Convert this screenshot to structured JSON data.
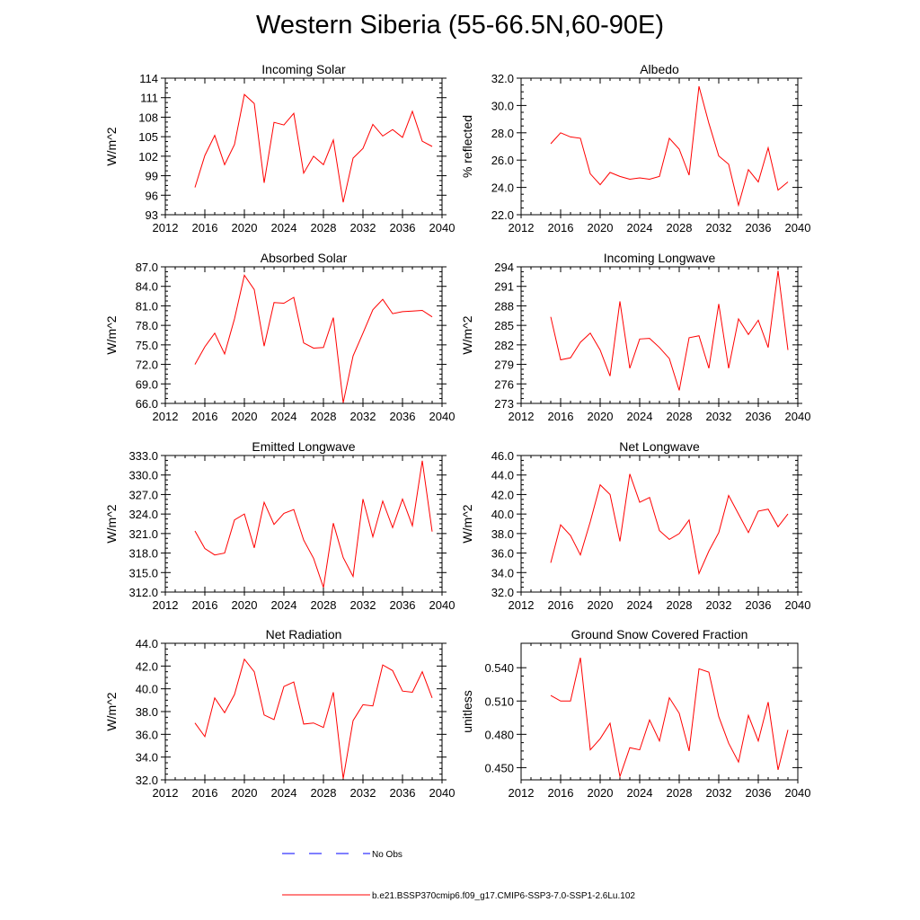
{
  "figure_title": "Western Siberia (55-66.5N,60-90E)",
  "legend": {
    "obs_label": "No Obs",
    "model_label": "b.e21.BSSP370cmip6.f09_g17.CMIP6-SSP3-7.0-SSP1-2.6Lu.102",
    "model_color": "#ff0000",
    "obs_color": "#0000ff"
  },
  "chart_data": [
    {
      "type": "line",
      "title": "Incoming Solar",
      "ylabel": "W/m^2",
      "xlim": [
        2012,
        2040
      ],
      "ylim": [
        93,
        114
      ],
      "x_ticks": [
        "2012",
        "2016",
        "2020",
        "2024",
        "2028",
        "2032",
        "2036",
        "2040"
      ],
      "y_ticks": [
        "93",
        "96",
        "99",
        "102",
        "105",
        "108",
        "111",
        "114"
      ],
      "x": [
        2015,
        2016,
        2017,
        2018,
        2019,
        2020,
        2021,
        2022,
        2023,
        2024,
        2025,
        2026,
        2027,
        2028,
        2029,
        2030,
        2031,
        2032,
        2033,
        2034,
        2035,
        2036,
        2037,
        2038,
        2039
      ],
      "values": [
        97.2,
        102.1,
        105.2,
        100.7,
        103.8,
        111.5,
        110.1,
        97.9,
        107.2,
        106.8,
        108.6,
        99.4,
        102.0,
        100.7,
        104.5,
        94.9,
        101.7,
        103.2,
        106.9,
        105.1,
        106.1,
        104.9,
        108.9,
        104.3,
        103.5
      ]
    },
    {
      "type": "line",
      "title": "Albedo",
      "ylabel": "% reflected",
      "xlim": [
        2012,
        2040
      ],
      "ylim": [
        22,
        32
      ],
      "x_ticks": [
        "2012",
        "2016",
        "2020",
        "2024",
        "2028",
        "2032",
        "2036",
        "2040"
      ],
      "y_ticks": [
        "22.0",
        "24.0",
        "26.0",
        "28.0",
        "30.0",
        "32.0"
      ],
      "x": [
        2015,
        2016,
        2017,
        2018,
        2019,
        2020,
        2021,
        2022,
        2023,
        2024,
        2025,
        2026,
        2027,
        2028,
        2029,
        2030,
        2031,
        2032,
        2033,
        2034,
        2035,
        2036,
        2037,
        2038,
        2039
      ],
      "values": [
        27.2,
        28.0,
        27.7,
        27.6,
        25.0,
        24.2,
        25.1,
        24.8,
        24.6,
        24.7,
        24.6,
        24.8,
        27.6,
        26.8,
        24.9,
        31.4,
        28.7,
        26.3,
        25.7,
        22.7,
        25.3,
        24.4,
        26.9,
        23.8,
        24.4
      ]
    },
    {
      "type": "line",
      "title": "Absorbed Solar",
      "ylabel": "W/m^2",
      "xlim": [
        2012,
        2040
      ],
      "ylim": [
        66,
        87
      ],
      "x_ticks": [
        "2012",
        "2016",
        "2020",
        "2024",
        "2028",
        "2032",
        "2036",
        "2040"
      ],
      "y_ticks": [
        "66.0",
        "69.0",
        "72.0",
        "75.0",
        "78.0",
        "81.0",
        "84.0",
        "87.0"
      ],
      "x": [
        2015,
        2016,
        2017,
        2018,
        2019,
        2020,
        2021,
        2022,
        2023,
        2024,
        2025,
        2026,
        2027,
        2028,
        2029,
        2030,
        2031,
        2032,
        2033,
        2034,
        2035,
        2036,
        2037,
        2038,
        2039
      ],
      "values": [
        72.0,
        74.7,
        76.8,
        73.6,
        79.0,
        85.7,
        83.5,
        74.8,
        81.5,
        81.4,
        82.3,
        75.3,
        74.5,
        74.6,
        79.2,
        66.1,
        73.3,
        76.8,
        80.4,
        82.0,
        79.8,
        80.1,
        80.2,
        80.3,
        79.3
      ]
    },
    {
      "type": "line",
      "title": "Incoming Longwave",
      "ylabel": "W/m^2",
      "xlim": [
        2012,
        2040
      ],
      "ylim": [
        273,
        294
      ],
      "x_ticks": [
        "2012",
        "2016",
        "2020",
        "2024",
        "2028",
        "2032",
        "2036",
        "2040"
      ],
      "y_ticks": [
        "273",
        "276",
        "279",
        "282",
        "285",
        "288",
        "291",
        "294"
      ],
      "x": [
        2015,
        2016,
        2017,
        2018,
        2019,
        2020,
        2021,
        2022,
        2023,
        2024,
        2025,
        2026,
        2027,
        2028,
        2029,
        2030,
        2031,
        2032,
        2033,
        2034,
        2035,
        2036,
        2037,
        2038,
        2039
      ],
      "values": [
        286.3,
        279.7,
        280.0,
        282.4,
        283.8,
        281.2,
        277.2,
        288.7,
        278.4,
        282.9,
        283.0,
        281.6,
        279.9,
        275.0,
        283.1,
        283.4,
        278.4,
        288.3,
        278.4,
        286.0,
        283.6,
        285.8,
        281.6,
        293.4,
        281.2
      ]
    },
    {
      "type": "line",
      "title": "Emitted Longwave",
      "ylabel": "W/m^2",
      "xlim": [
        2012,
        2040
      ],
      "ylim": [
        312,
        333
      ],
      "x_ticks": [
        "2012",
        "2016",
        "2020",
        "2024",
        "2028",
        "2032",
        "2036",
        "2040"
      ],
      "y_ticks": [
        "312.0",
        "315.0",
        "318.0",
        "321.0",
        "324.0",
        "327.0",
        "330.0",
        "333.0"
      ],
      "x": [
        2015,
        2016,
        2017,
        2018,
        2019,
        2020,
        2021,
        2022,
        2023,
        2024,
        2025,
        2026,
        2027,
        2028,
        2029,
        2030,
        2031,
        2032,
        2033,
        2034,
        2035,
        2036,
        2037,
        2038,
        2039
      ],
      "values": [
        321.4,
        318.7,
        317.7,
        318.0,
        323.1,
        324.0,
        318.8,
        325.8,
        322.4,
        324.1,
        324.7,
        320.0,
        317.2,
        312.7,
        322.6,
        317.3,
        314.4,
        326.3,
        320.5,
        326.0,
        321.9,
        326.3,
        322.2,
        332.2,
        321.3
      ]
    },
    {
      "type": "line",
      "title": "Net Longwave",
      "ylabel": "W/m^2",
      "xlim": [
        2012,
        2040
      ],
      "ylim": [
        32,
        46
      ],
      "x_ticks": [
        "2012",
        "2016",
        "2020",
        "2024",
        "2028",
        "2032",
        "2036",
        "2040"
      ],
      "y_ticks": [
        "32.0",
        "34.0",
        "36.0",
        "38.0",
        "40.0",
        "42.0",
        "44.0",
        "46.0"
      ],
      "x": [
        2015,
        2016,
        2017,
        2018,
        2019,
        2020,
        2021,
        2022,
        2023,
        2024,
        2025,
        2026,
        2027,
        2028,
        2029,
        2030,
        2031,
        2032,
        2033,
        2034,
        2035,
        2036,
        2037,
        2038,
        2039
      ],
      "values": [
        35.0,
        38.9,
        37.8,
        35.8,
        39.2,
        43.0,
        42.0,
        37.2,
        44.1,
        41.2,
        41.7,
        38.3,
        37.4,
        38.0,
        39.4,
        33.9,
        36.2,
        38.1,
        41.9,
        40.0,
        38.1,
        40.3,
        40.5,
        38.7,
        40.0
      ]
    },
    {
      "type": "line",
      "title": "Net Radiation",
      "ylabel": "W/m^2",
      "xlim": [
        2012,
        2040
      ],
      "ylim": [
        32,
        44
      ],
      "x_ticks": [
        "2012",
        "2016",
        "2020",
        "2024",
        "2028",
        "2032",
        "2036",
        "2040"
      ],
      "y_ticks": [
        "32.0",
        "34.0",
        "36.0",
        "38.0",
        "40.0",
        "42.0",
        "44.0"
      ],
      "x": [
        2015,
        2016,
        2017,
        2018,
        2019,
        2020,
        2021,
        2022,
        2023,
        2024,
        2025,
        2026,
        2027,
        2028,
        2029,
        2030,
        2031,
        2032,
        2033,
        2034,
        2035,
        2036,
        2037,
        2038,
        2039
      ],
      "values": [
        37.0,
        35.8,
        39.2,
        37.9,
        39.5,
        42.6,
        41.5,
        37.7,
        37.3,
        40.2,
        40.6,
        36.9,
        37.0,
        36.6,
        39.7,
        32.1,
        37.2,
        38.6,
        38.5,
        42.1,
        41.6,
        39.8,
        39.7,
        41.5,
        39.2
      ]
    },
    {
      "type": "line",
      "title": "Ground Snow Covered Fraction",
      "ylabel": "unitless",
      "xlim": [
        2012,
        2040
      ],
      "ylim": [
        0.439,
        0.562
      ],
      "x_ticks": [
        "2012",
        "2016",
        "2020",
        "2024",
        "2028",
        "2032",
        "2036",
        "2040"
      ],
      "y_ticks": [
        "0.450",
        "0.480",
        "0.510",
        "0.540"
      ],
      "y_tick_values": [
        0.45,
        0.48,
        0.51,
        0.54
      ],
      "x": [
        2015,
        2016,
        2017,
        2018,
        2019,
        2020,
        2021,
        2022,
        2023,
        2024,
        2025,
        2026,
        2027,
        2028,
        2029,
        2030,
        2031,
        2032,
        2033,
        2034,
        2035,
        2036,
        2037,
        2038,
        2039
      ],
      "values": [
        0.515,
        0.51,
        0.51,
        0.549,
        0.466,
        0.476,
        0.49,
        0.442,
        0.468,
        0.466,
        0.493,
        0.474,
        0.513,
        0.499,
        0.465,
        0.539,
        0.536,
        0.496,
        0.472,
        0.455,
        0.497,
        0.474,
        0.509,
        0.448,
        0.484
      ]
    }
  ]
}
